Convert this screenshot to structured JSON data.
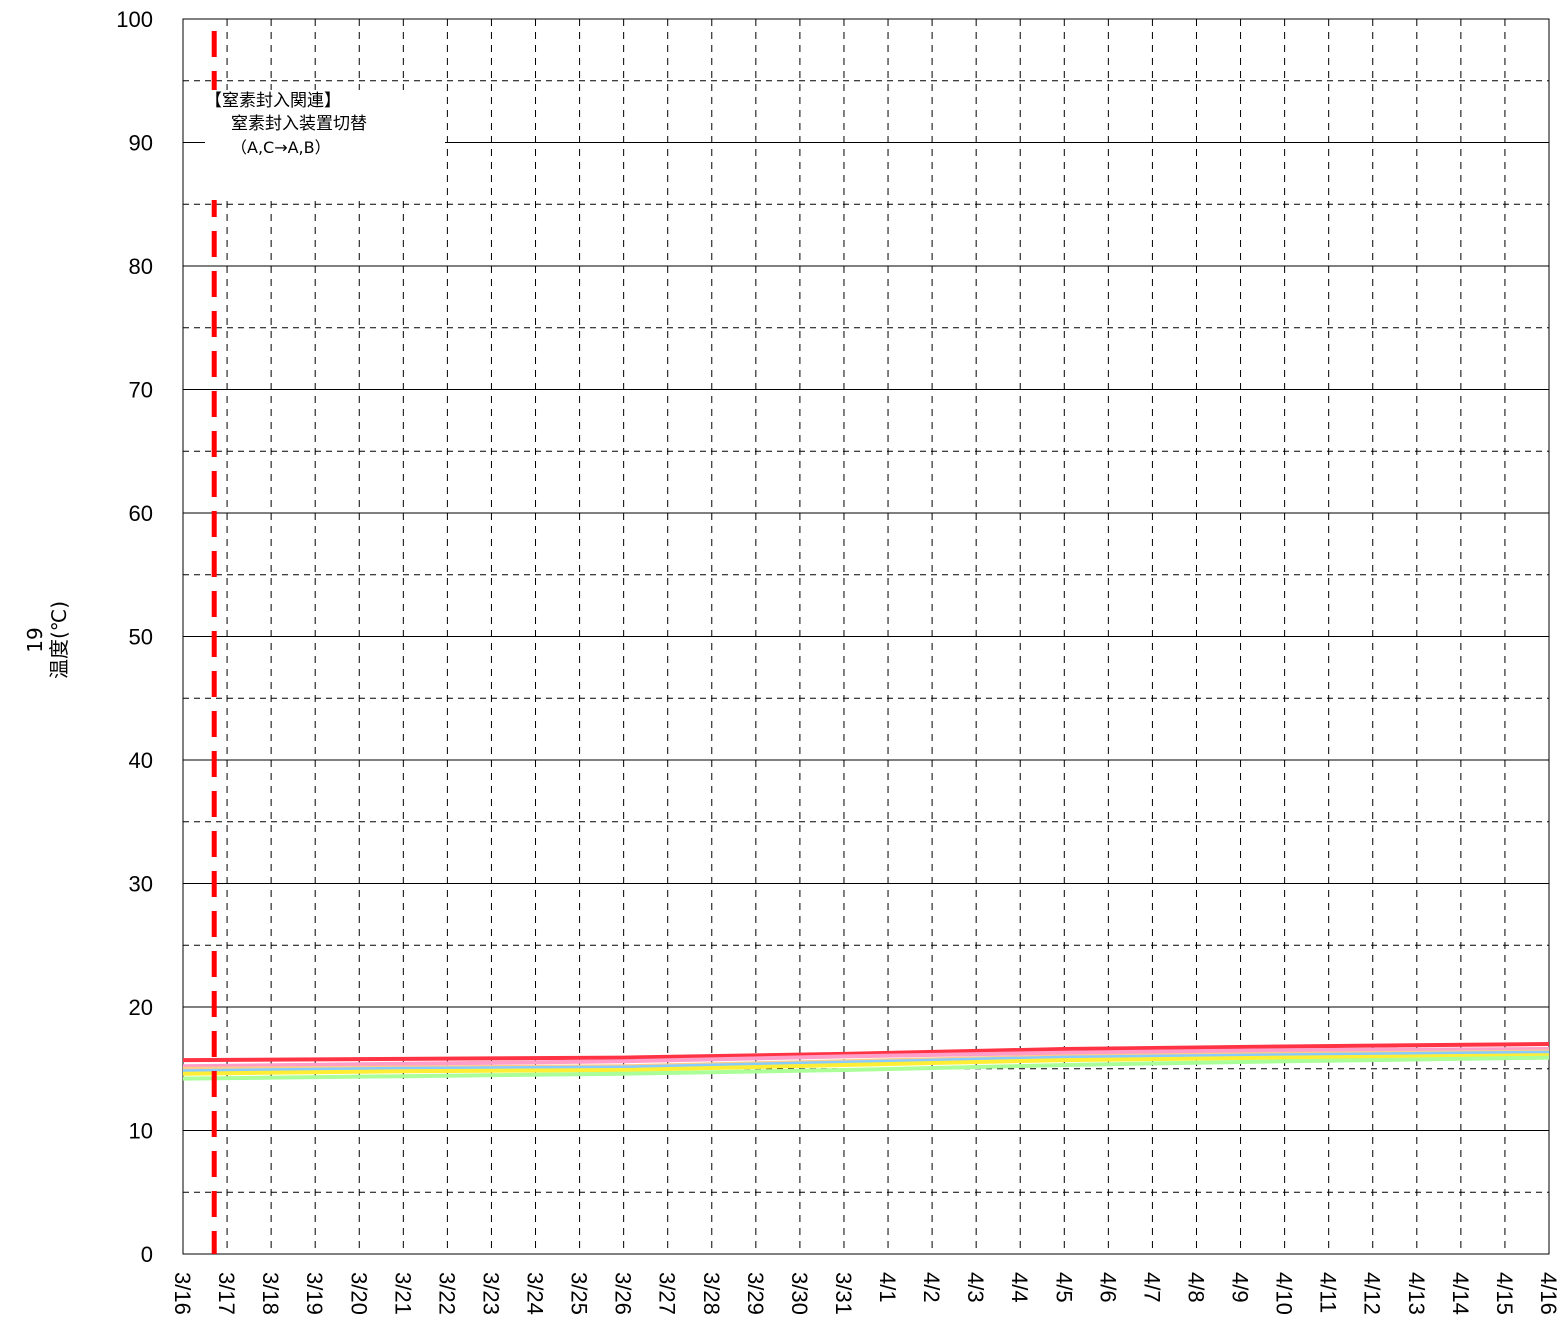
{
  "chart_data": {
    "type": "line",
    "ylabel": "温度(℃)",
    "ylabel_extra": "19",
    "ylim": [
      0,
      100
    ],
    "y_ticks": [
      0,
      10,
      20,
      30,
      40,
      50,
      60,
      70,
      80,
      90,
      100
    ],
    "x_tick_labels": [
      "3/16",
      "3/17",
      "3/18",
      "3/19",
      "3/20",
      "3/21",
      "3/22",
      "3/23",
      "3/24",
      "3/25",
      "3/26",
      "3/27",
      "3/28",
      "3/29",
      "3/30",
      "3/31",
      "4/1",
      "4/2",
      "4/3",
      "4/4",
      "4/5",
      "4/6",
      "4/7",
      "4/8",
      "4/9",
      "4/10",
      "4/11",
      "4/12",
      "4/13",
      "4/14",
      "4/15",
      "4/16"
    ],
    "grid": true,
    "annotation": {
      "lines": [
        "【窒素封入関連】",
        "窒素封入装置切替",
        "（A,C→A,B）"
      ],
      "event_date": "3/16 17:00",
      "marker_color": "#ff0000"
    },
    "series": [
      {
        "color": "#ff3344",
        "x": [
          "3/16",
          "3/21",
          "3/26",
          "3/31",
          "4/5",
          "4/10",
          "4/16"
        ],
        "values": [
          15.7,
          15.8,
          15.9,
          16.2,
          16.6,
          16.8,
          17.0
        ]
      },
      {
        "color": "#ff9ec8",
        "x": [
          "3/16",
          "3/21",
          "3/26",
          "3/31",
          "4/5",
          "4/10",
          "4/16"
        ],
        "values": [
          15.2,
          15.4,
          15.6,
          16.0,
          16.3,
          16.5,
          16.6
        ]
      },
      {
        "color": "#ffcc88",
        "x": [
          "3/16",
          "3/21",
          "3/26",
          "3/31",
          "4/5",
          "4/10",
          "4/16"
        ],
        "values": [
          15.0,
          15.1,
          15.2,
          15.6,
          16.0,
          16.2,
          16.4
        ]
      },
      {
        "color": "#88ccff",
        "x": [
          "3/16",
          "3/21",
          "3/26",
          "3/31",
          "4/5",
          "4/10",
          "4/16"
        ],
        "values": [
          14.8,
          15.0,
          15.1,
          15.5,
          15.9,
          16.1,
          16.3
        ]
      },
      {
        "color": "#ffee33",
        "x": [
          "3/16",
          "3/21",
          "3/26",
          "3/31",
          "4/5",
          "4/10",
          "4/16"
        ],
        "values": [
          14.6,
          14.8,
          14.9,
          15.3,
          15.7,
          15.9,
          16.1
        ]
      },
      {
        "color": "#aaff99",
        "x": [
          "3/16",
          "3/21",
          "3/26",
          "3/31",
          "4/5",
          "4/10",
          "4/16"
        ],
        "values": [
          14.2,
          14.4,
          14.6,
          14.9,
          15.3,
          15.6,
          15.9
        ]
      }
    ]
  }
}
